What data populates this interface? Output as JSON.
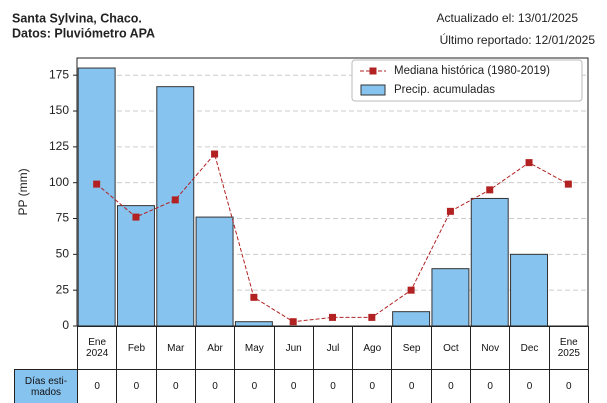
{
  "chart_data": {
    "type": "bar",
    "title": "Santa Sylvina, Chaco.",
    "subtitle": "Datos: Pluviómetro APA",
    "updated": "Actualizado el: 13/01/2025",
    "last_reported": "Último reportado: 12/01/2025",
    "y_label": "PP (mm)",
    "categories": [
      "Ene\n2024",
      "Feb",
      "Mar",
      "Abr",
      "May",
      "Jun",
      "Jul",
      "Ago",
      "Sep",
      "Oct",
      "Nov",
      "Dec",
      "Ene\n2025"
    ],
    "series": [
      {
        "name": "Precip. acumuladas",
        "type": "bar",
        "color": "#87c3ef",
        "values": [
          180,
          84,
          167,
          76,
          3,
          0,
          0,
          0,
          10,
          40,
          89,
          50,
          null
        ]
      },
      {
        "name": "Mediana histórica (1980-2019)",
        "type": "line",
        "color": "#b22222",
        "values": [
          99,
          76,
          88,
          120,
          20,
          3,
          6,
          6,
          25,
          80,
          95,
          114,
          99
        ]
      }
    ],
    "ylim": [
      0,
      187
    ],
    "yticks": [
      0,
      25,
      50,
      75,
      100,
      125,
      150,
      175
    ],
    "grid": true,
    "legend": "upper right",
    "table": {
      "row_label": "Días esti-\nmados",
      "values": [
        0,
        0,
        0,
        0,
        0,
        0,
        0,
        0,
        0,
        0,
        0,
        0,
        0
      ]
    }
  }
}
